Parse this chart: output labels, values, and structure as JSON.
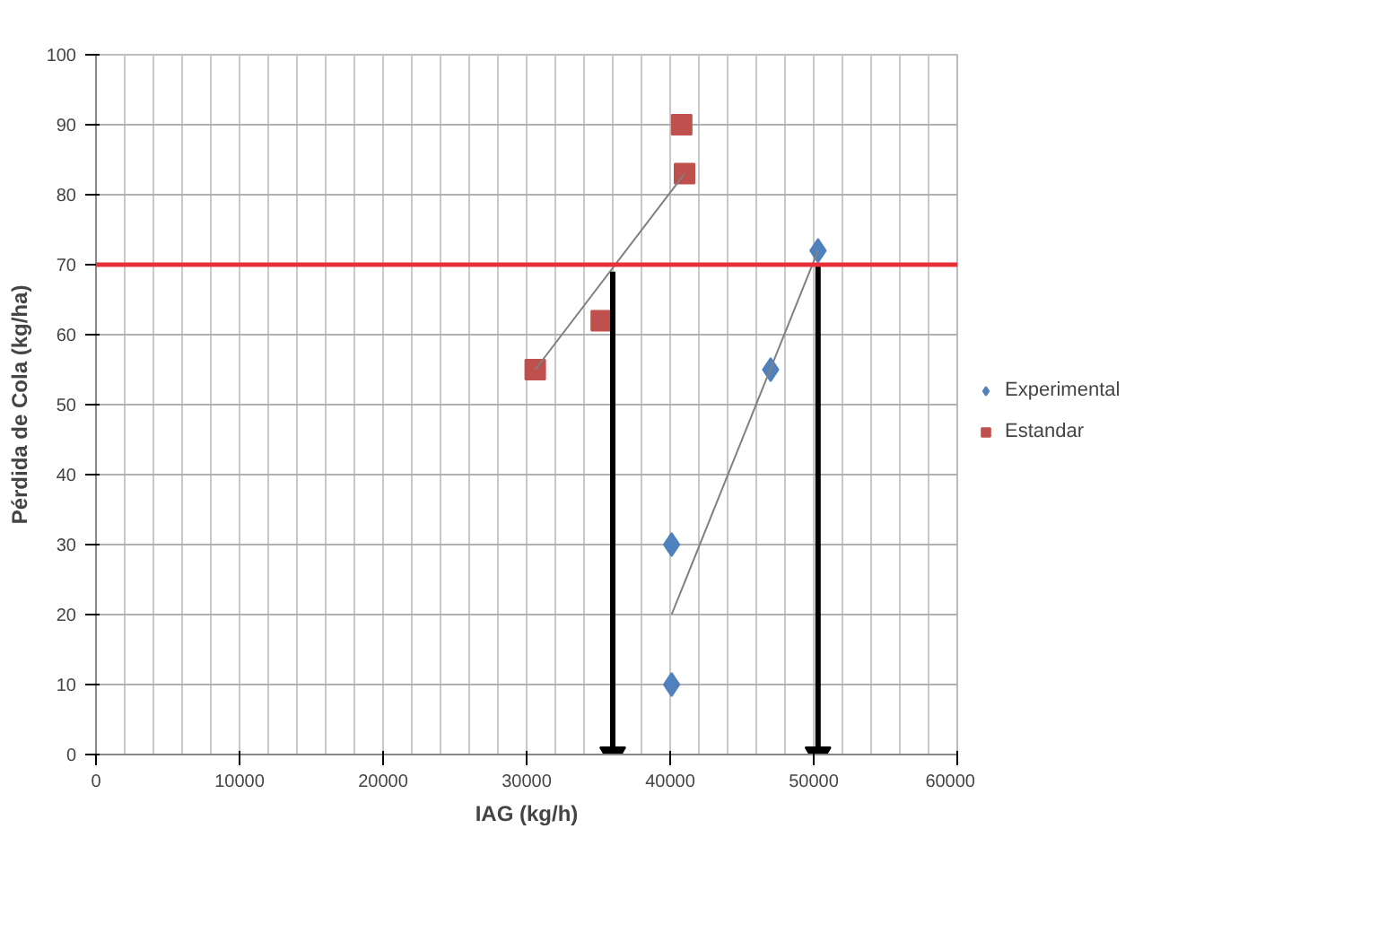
{
  "chart_data": {
    "type": "scatter",
    "xlabel": "IAG (kg/h)",
    "ylabel": "Pérdida de Cola (kg/ha)",
    "xlim": [
      0,
      60000
    ],
    "ylim": [
      0,
      100
    ],
    "xticks": [
      0,
      10000,
      20000,
      30000,
      40000,
      50000,
      60000
    ],
    "yticks": [
      0,
      10,
      20,
      30,
      40,
      50,
      60,
      70,
      80,
      90,
      100
    ],
    "grid": true,
    "legend": "right",
    "series": [
      {
        "name": "Experimental",
        "color": "#4f81bd",
        "marker": "diamond",
        "x": [
          40100,
          40100,
          47000,
          50300
        ],
        "values": [
          30,
          10,
          55,
          72
        ]
      },
      {
        "name": "Estandar",
        "color": "#c0504d",
        "marker": "square",
        "x": [
          30600,
          35200,
          41000,
          40800
        ],
        "values": [
          55,
          62,
          83,
          90
        ]
      },
      {
        "type": "line",
        "color": "#808080",
        "x": [
          40100,
          50300
        ],
        "values": [
          20,
          72
        ]
      },
      {
        "type": "line",
        "color": "#808080",
        "x": [
          30600,
          41000
        ],
        "values": [
          55,
          83
        ]
      },
      {
        "type": "line",
        "marker": "triangle",
        "color": "#000000",
        "x": [
          36000,
          36000
        ],
        "values": [
          69,
          0
        ]
      },
      {
        "type": "line",
        "marker": "triangle",
        "color": "#000000",
        "x": [
          50300,
          50300
        ],
        "values": [
          70,
          0
        ]
      }
    ],
    "ref_lines": [
      {
        "axis": "y",
        "value": 70,
        "color": "#e8303a"
      }
    ]
  }
}
